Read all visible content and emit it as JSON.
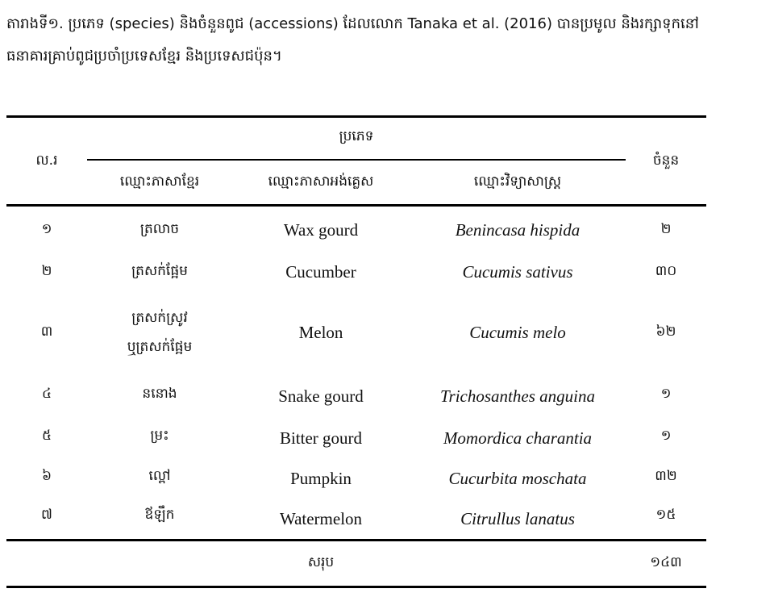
{
  "caption": {
    "line1": "តារាងទី១. ប្រភេទ (species) និងចំនួនពូជ (accessions) ដែលលោក Tanaka et al. (2016) បានប្រមូល និងរក្សាទុកនៅ",
    "line2": "ធនាគារគ្រាប់ពូជប្រចាំប្រទេសខ្មែរ និងប្រទេសជប៉ុន។"
  },
  "table": {
    "header": {
      "no": "ល.រ",
      "species_group": "ប្រភេទ",
      "khmer_name": "ឈ្មោះភាសាខ្មែរ",
      "english_name": "ឈ្មោះភាសាអង់គ្លេស",
      "scientific_name": "ឈ្មោះវិទ្យាសាស្ត្រ",
      "count": "ចំនួន"
    },
    "rows": [
      {
        "no": "១",
        "khmer": "ត្រលាច",
        "english": "Wax gourd",
        "scientific": "Benincasa hispida",
        "count": "២"
      },
      {
        "no": "២",
        "khmer": "ត្រសក់ផ្អែម",
        "english": "Cucumber",
        "scientific": "Cucumis sativus",
        "count": "៣០"
      },
      {
        "no": "៣",
        "khmer_line1": "ត្រសក់ស្រូវ",
        "khmer_line2": "ឬត្រសក់ផ្អែម",
        "english": "Melon",
        "scientific": "Cucumis melo",
        "count": "៦២"
      },
      {
        "no": "៤",
        "khmer": "ននោង",
        "english": "Snake gourd",
        "scientific": "Trichosanthes anguina",
        "count": "១"
      },
      {
        "no": "៥",
        "khmer": "ម្រះ",
        "english": "Bitter gourd",
        "scientific": "Momordica charantia",
        "count": "១"
      },
      {
        "no": "៦",
        "khmer": "ល្ពៅ",
        "english": "Pumpkin",
        "scientific": "Cucurbita moschata",
        "count": "៣២"
      },
      {
        "no": "៧",
        "khmer": "ឪឡឹក",
        "english": "Watermelon",
        "scientific": "Citrullus lanatus",
        "count": "១៥"
      }
    ],
    "total": {
      "label": "សរុប",
      "count": "១៤៣"
    }
  }
}
